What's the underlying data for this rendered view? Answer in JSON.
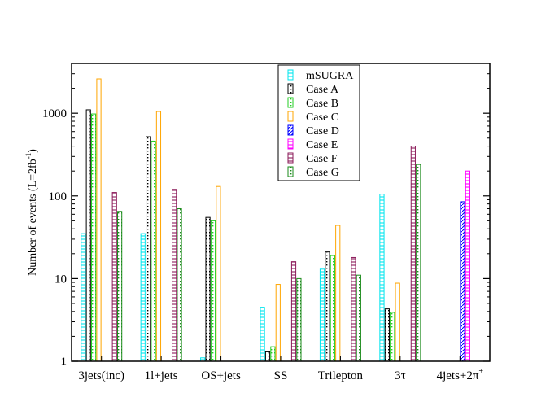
{
  "chart_data": {
    "type": "bar",
    "scale": "log",
    "ylabel_main": "Number of events (L=2fb",
    "ylabel_sup": "-1",
    "ylabel_end": ")",
    "ylim": [
      1,
      4000
    ],
    "yticks": [
      {
        "value": 1,
        "label": "1"
      },
      {
        "value": 10,
        "label": "10"
      },
      {
        "value": 100,
        "label": "100"
      },
      {
        "value": 1000,
        "label": "1000"
      }
    ],
    "categories": [
      {
        "label": "3jets(inc)",
        "sup": ""
      },
      {
        "label": "1l+jets",
        "sup": ""
      },
      {
        "label": "OS+jets",
        "sup": ""
      },
      {
        "label": "SS",
        "sup": ""
      },
      {
        "label": "Trilepton",
        "sup": ""
      },
      {
        "label": "3τ",
        "sup": ""
      },
      {
        "label": "4jets+2π",
        "sup": "±"
      }
    ],
    "series": [
      {
        "name": "mSUGRA",
        "color": "#00e5ee",
        "pattern": "hlines",
        "values": [
          35,
          35,
          1.1,
          4.5,
          13,
          105,
          null
        ]
      },
      {
        "name": "Case A",
        "color": "#000000",
        "pattern": "dots",
        "values": [
          1100,
          520,
          55,
          1.3,
          21,
          4.3,
          null
        ]
      },
      {
        "name": "Case B",
        "color": "#22cc22",
        "pattern": "dots",
        "values": [
          980,
          460,
          50,
          1.5,
          19,
          3.9,
          null
        ]
      },
      {
        "name": "Case C",
        "color": "#ffa500",
        "pattern": "none",
        "values": [
          2600,
          1050,
          130,
          8.5,
          44,
          8.8,
          null
        ]
      },
      {
        "name": "Case D",
        "color": "#0000ff",
        "pattern": "diag",
        "values": [
          null,
          null,
          null,
          null,
          null,
          null,
          85
        ]
      },
      {
        "name": "Case E",
        "color": "#ff00ff",
        "pattern": "hlines",
        "values": [
          null,
          null,
          null,
          null,
          null,
          null,
          200
        ]
      },
      {
        "name": "Case F",
        "color": "#8b1a5a",
        "pattern": "hlines",
        "values": [
          110,
          120,
          null,
          16,
          18,
          400,
          null
        ]
      },
      {
        "name": "Case G",
        "color": "#1a8a1a",
        "pattern": "dots",
        "values": [
          65,
          70,
          null,
          10,
          11,
          240,
          null
        ]
      }
    ]
  }
}
